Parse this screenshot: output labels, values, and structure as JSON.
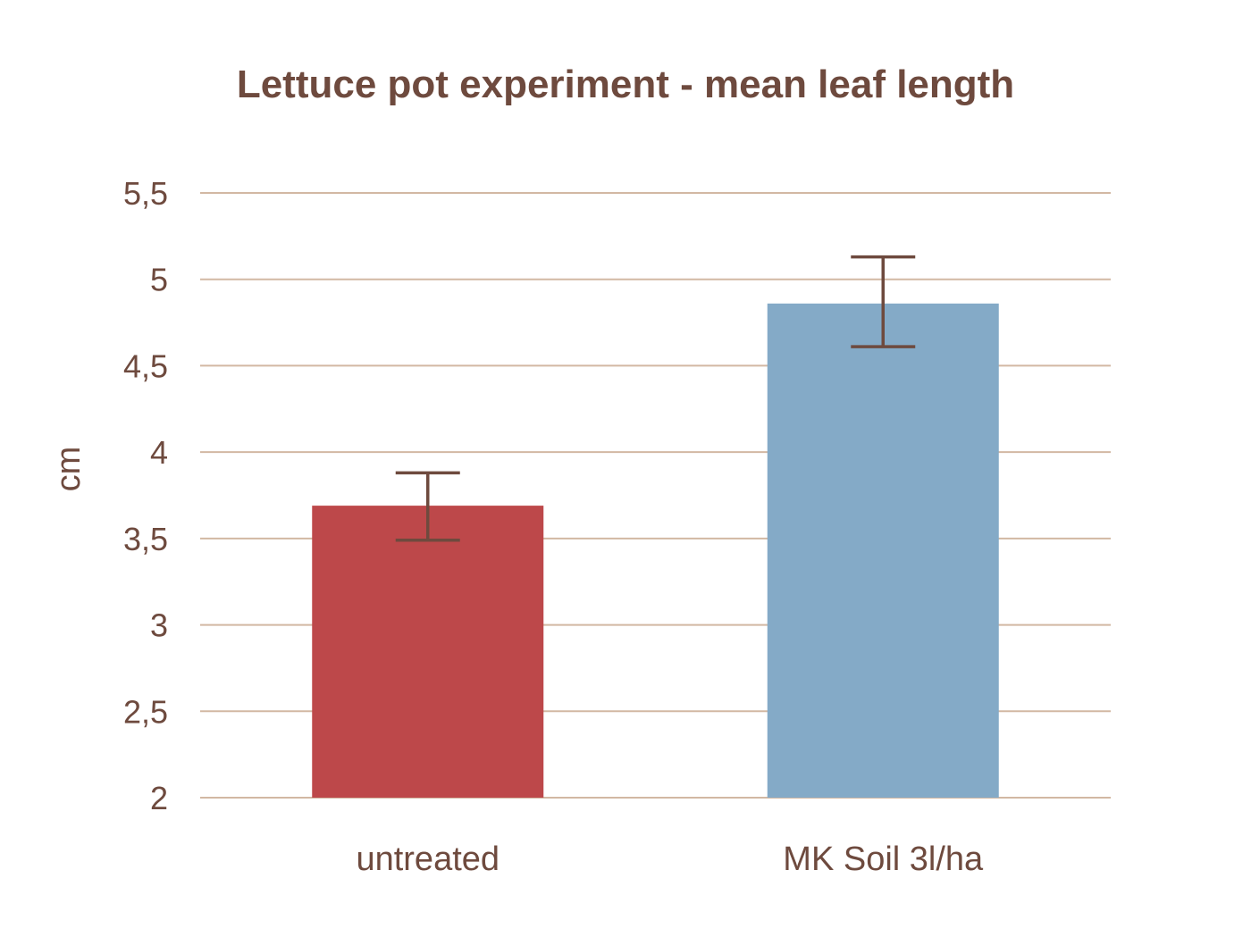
{
  "chart_data": {
    "type": "bar",
    "title": "Lettuce pot experiment - mean leaf length",
    "xlabel": "",
    "ylabel": "cm",
    "ylim": [
      2,
      5.5
    ],
    "yticks": [
      2,
      2.5,
      3,
      3.5,
      4,
      4.5,
      5,
      5.5
    ],
    "ytick_labels": [
      "2",
      "2,5",
      "3",
      "3,5",
      "4",
      "4,5",
      "5",
      "5,5"
    ],
    "categories": [
      "untreated",
      "MK Soil 3l/ha"
    ],
    "values": [
      3.69,
      4.86
    ],
    "error_low": [
      3.49,
      4.61
    ],
    "error_high": [
      3.88,
      5.13
    ],
    "bar_colors": [
      "#bd484a",
      "#84aac7"
    ],
    "grid": true,
    "legend": "none"
  },
  "colors": {
    "text": "#6e4a3e",
    "grid": "#d2b8a3",
    "error_bar": "#6e4a3e"
  }
}
